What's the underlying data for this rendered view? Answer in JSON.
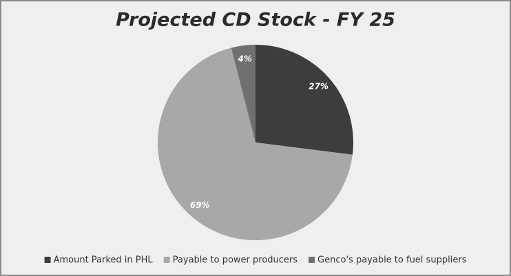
{
  "chart_data": {
    "type": "pie",
    "title": "Projected CD Stock - FY 25",
    "categories": [
      "Amount Parked in PHL",
      "Payable to power producers",
      "Genco's payable to fuel suppliers"
    ],
    "values": [
      27,
      69,
      4
    ],
    "value_labels": [
      "27%",
      "69%",
      "4%"
    ],
    "colors": [
      "#3d3d3d",
      "#a8a8a8",
      "#707070"
    ],
    "legend": "bottom"
  }
}
